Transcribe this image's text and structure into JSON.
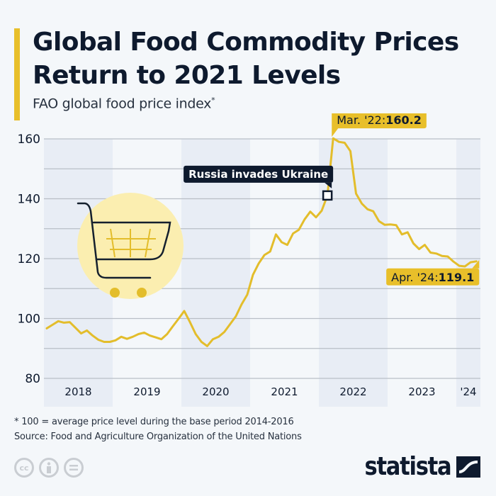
{
  "header": {
    "title": "Global Food Commodity Prices Return to 2021 Levels",
    "subtitle": "FAO global food price index",
    "subtitle_marker": "*"
  },
  "footer": {
    "note": "* 100 = average price level during the base period 2014-2016",
    "source": "Source: Food and Agriculture Organization of the United Nations",
    "license_icons": [
      "cc-icon",
      "attribution-icon",
      "no-derivatives-icon"
    ],
    "cc_label": "cc",
    "brand": "statista"
  },
  "colors": {
    "line": "#e3bd2b",
    "accent": "#e8bf2a",
    "dark": "#0e1a2e",
    "band": "#e8edf5",
    "grid": "#b9bec6",
    "cart_circle": "#fbeeb0"
  },
  "chart_data": {
    "type": "line",
    "title": "Global Food Commodity Prices Return to 2021 Levels",
    "subtitle": "FAO global food price index*",
    "xlabel": "",
    "ylabel": "",
    "ylim": [
      80,
      160
    ],
    "yticks": [
      80,
      100,
      120,
      140,
      160
    ],
    "minor_gridlines": [
      90,
      110,
      130,
      150
    ],
    "grid": true,
    "xlim": [
      "2018-01",
      "2024-04"
    ],
    "year_labels": [
      "2018",
      "2019",
      "2020",
      "2021",
      "2022",
      "2023",
      "'24"
    ],
    "series": [
      {
        "name": "FAO Food Price Index",
        "x": [
          "2018-01",
          "2018-02",
          "2018-03",
          "2018-04",
          "2018-05",
          "2018-06",
          "2018-07",
          "2018-08",
          "2018-09",
          "2018-10",
          "2018-11",
          "2018-12",
          "2019-01",
          "2019-02",
          "2019-03",
          "2019-04",
          "2019-05",
          "2019-06",
          "2019-07",
          "2019-08",
          "2019-09",
          "2019-10",
          "2019-11",
          "2019-12",
          "2020-01",
          "2020-02",
          "2020-03",
          "2020-04",
          "2020-05",
          "2020-06",
          "2020-07",
          "2020-08",
          "2020-09",
          "2020-10",
          "2020-11",
          "2020-12",
          "2021-01",
          "2021-02",
          "2021-03",
          "2021-04",
          "2021-05",
          "2021-06",
          "2021-07",
          "2021-08",
          "2021-09",
          "2021-10",
          "2021-11",
          "2021-12",
          "2022-01",
          "2022-02",
          "2022-03",
          "2022-04",
          "2022-05",
          "2022-06",
          "2022-07",
          "2022-08",
          "2022-09",
          "2022-10",
          "2022-11",
          "2022-12",
          "2023-01",
          "2023-02",
          "2023-03",
          "2023-04",
          "2023-05",
          "2023-06",
          "2023-07",
          "2023-08",
          "2023-09",
          "2023-10",
          "2023-11",
          "2023-12",
          "2024-01",
          "2024-02",
          "2024-03",
          "2024-04"
        ],
        "values": [
          96.7,
          97.9,
          99.1,
          98.6,
          98.8,
          96.9,
          95.0,
          96.0,
          94.3,
          92.9,
          92.2,
          92.2,
          92.7,
          93.9,
          93.2,
          93.9,
          94.8,
          95.3,
          94.3,
          93.7,
          93.1,
          94.8,
          97.4,
          99.9,
          102.5,
          98.8,
          94.8,
          92.2,
          90.8,
          93.1,
          93.9,
          95.5,
          98.1,
          100.7,
          104.7,
          108.0,
          114.6,
          118.4,
          121.2,
          122.4,
          128.1,
          125.5,
          124.6,
          128.4,
          129.6,
          133.1,
          135.7,
          133.8,
          136.0,
          141.1,
          160.2,
          159.0,
          158.7,
          155.9,
          141.7,
          138.4,
          136.5,
          135.8,
          132.5,
          131.3,
          131.4,
          131.2,
          128.1,
          128.8,
          125.1,
          123.2,
          124.6,
          122.0,
          121.7,
          120.9,
          120.7,
          119.0,
          117.6,
          117.4,
          118.8,
          119.1
        ]
      }
    ],
    "annotations": [
      {
        "label": "Russia invades Ukraine",
        "x": "2022-02",
        "y": 141.1,
        "style": "dark-callout-with-square-marker"
      },
      {
        "label": "Mar. '22: ",
        "value_label": "160.2",
        "x": "2022-03",
        "y": 160.2,
        "style": "yellow-callout"
      },
      {
        "label": "Apr. '24: ",
        "value_label": "119.1",
        "x": "2024-04",
        "y": 119.1,
        "style": "yellow-callout"
      }
    ],
    "illustration": "shopping-cart-icon"
  }
}
